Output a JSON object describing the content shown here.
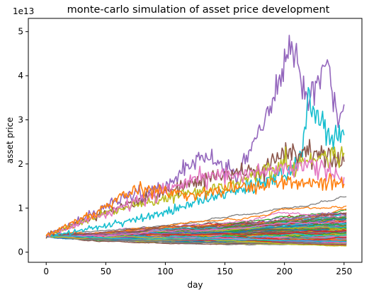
{
  "chart_data": {
    "type": "line",
    "title": "monte-carlo simulation of asset price development",
    "xlabel": "day",
    "ylabel": "asset price",
    "y_offset_label": "1e13",
    "xlim": [
      -15,
      265
    ],
    "ylim": [
      -2300000000000.0,
      53000000000000.0
    ],
    "x_ticks": [
      0,
      50,
      100,
      150,
      200,
      250
    ],
    "y_ticks": [
      0,
      1,
      2,
      3,
      4,
      5
    ],
    "grid": false,
    "legend": "none",
    "start_value": 3600000000000.0,
    "days": 252,
    "simulation_count": 200,
    "series_colors": [
      "#1f77b4",
      "#ff7f0e",
      "#2ca02c",
      "#d62728",
      "#9467bd",
      "#8c564b",
      "#e377c2",
      "#7f7f7f",
      "#bcbd22",
      "#17becf"
    ],
    "highlight_series": [
      {
        "color": "#9467bd",
        "points": [
          [
            0,
            3600000000000.0
          ],
          [
            30,
            7500000000000.0
          ],
          [
            60,
            12000000000000.0
          ],
          [
            100,
            15000000000000.0
          ],
          [
            130,
            22000000000000.0
          ],
          [
            160,
            17000000000000.0
          ],
          [
            180,
            28000000000000.0
          ],
          [
            195,
            39000000000000.0
          ],
          [
            205,
            47000000000000.0
          ],
          [
            208,
            49000000000000.0
          ],
          [
            215,
            36000000000000.0
          ],
          [
            225,
            38000000000000.0
          ],
          [
            235,
            41000000000000.0
          ],
          [
            240,
            38000000000000.0
          ],
          [
            245,
            31000000000000.0
          ],
          [
            250,
            33500000000000.0
          ]
        ]
      },
      {
        "color": "#17becf",
        "points": [
          [
            0,
            3600000000000.0
          ],
          [
            50,
            6000000000000.0
          ],
          [
            100,
            9000000000000.0
          ],
          [
            150,
            13500000000000.0
          ],
          [
            190,
            16500000000000.0
          ],
          [
            210,
            19000000000000.0
          ],
          [
            215,
            24000000000000.0
          ],
          [
            220,
            35000000000000.0
          ],
          [
            225,
            31000000000000.0
          ],
          [
            232,
            29000000000000.0
          ],
          [
            240,
            25000000000000.0
          ],
          [
            245,
            27000000000000.0
          ],
          [
            250,
            26500000000000.0
          ]
        ]
      },
      {
        "color": "#8c564b",
        "points": [
          [
            0,
            3600000000000.0
          ],
          [
            40,
            8000000000000.0
          ],
          [
            90,
            13000000000000.0
          ],
          [
            140,
            17000000000000.0
          ],
          [
            180,
            19000000000000.0
          ],
          [
            210,
            23000000000000.0
          ],
          [
            230,
            22000000000000.0
          ],
          [
            250,
            20500000000000.0
          ]
        ]
      },
      {
        "color": "#bcbd22",
        "points": [
          [
            0,
            3600000000000.0
          ],
          [
            50,
            9000000000000.0
          ],
          [
            100,
            12000000000000.0
          ],
          [
            150,
            15000000000000.0
          ],
          [
            200,
            20000000000000.0
          ],
          [
            230,
            21000000000000.0
          ],
          [
            250,
            22500000000000.0
          ]
        ]
      },
      {
        "color": "#e377c2",
        "points": [
          [
            0,
            3600000000000.0
          ],
          [
            60,
            10000000000000.0
          ],
          [
            120,
            16000000000000.0
          ],
          [
            170,
            18000000000000.0
          ],
          [
            220,
            20000000000000.0
          ],
          [
            250,
            17000000000000.0
          ]
        ]
      },
      {
        "color": "#ff7f0e",
        "points": [
          [
            0,
            3600000000000.0
          ],
          [
            40,
            9000000000000.0
          ],
          [
            80,
            14500000000000.0
          ],
          [
            120,
            13000000000000.0
          ],
          [
            170,
            15000000000000.0
          ],
          [
            220,
            16000000000000.0
          ],
          [
            250,
            15500000000000.0
          ]
        ]
      }
    ]
  }
}
